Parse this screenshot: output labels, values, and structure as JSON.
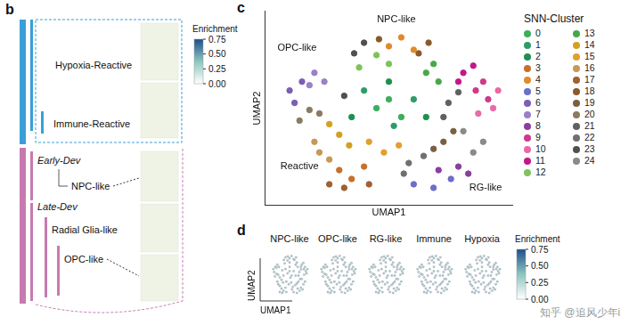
{
  "panel_b": {
    "label": "b",
    "reactive_group": [
      "Hypoxia-Reactive",
      "Immune-Reactive"
    ],
    "early_dev": {
      "title": "Early-Dev",
      "members": [
        "NPC-like"
      ]
    },
    "late_dev": {
      "title": "Late-Dev",
      "members": [
        "Radial Glia-like",
        "OPC-like"
      ]
    },
    "colorbar": {
      "title": "Enrichment",
      "range": [
        0,
        0.75
      ],
      "ticks": [
        {
          "value": 0,
          "label": "0.00"
        },
        0.25,
        {
          "value": 0.5,
          "label": "0.50"
        },
        0.75
      ]
    }
  },
  "chart_data": {
    "type": "scatter",
    "label": "c",
    "x_label": "UMAP1",
    "y_label": "UMAP2",
    "legend_title": "SNN-Cluster",
    "legend": "right",
    "tick_labels": false,
    "grid": false,
    "xlim": [
      0,
      10
    ],
    "ylim": [
      0,
      11
    ],
    "annotations": [
      {
        "text": "NPC-like",
        "x": 5.3,
        "y": 10.5
      },
      {
        "text": "OPC-like",
        "x": 1.3,
        "y": 8.9
      },
      {
        "text": "Reactive",
        "x": 1.4,
        "y": 2.2
      },
      {
        "text": "RG-like",
        "x": 8.9,
        "y": 1.0
      }
    ],
    "series": [
      {
        "name": "0",
        "color": "#3cae5c",
        "values": [
          [
            4.5,
            5.5
          ],
          [
            5,
            6
          ],
          [
            5.5,
            5
          ]
        ]
      },
      {
        "name": "1",
        "color": "#2e9c6a",
        "values": [
          [
            4,
            6.5
          ],
          [
            6,
            6
          ],
          [
            5.2,
            4.5
          ]
        ]
      },
      {
        "name": "2",
        "color": "#1e8f50",
        "values": [
          [
            6.5,
            5
          ],
          [
            3.5,
            5
          ],
          [
            5,
            7
          ]
        ]
      },
      {
        "name": "3",
        "color": "#c8702a",
        "values": [
          [
            3,
            2
          ],
          [
            3.5,
            1.5
          ],
          [
            4,
            2.2
          ]
        ]
      },
      {
        "name": "4",
        "color": "#e08a2c",
        "values": [
          [
            5,
            9
          ],
          [
            5.5,
            9.5
          ],
          [
            6,
            8.8
          ]
        ]
      },
      {
        "name": "5",
        "color": "#6a6fc8",
        "values": [
          [
            6,
            1.2
          ],
          [
            6.8,
            1
          ],
          [
            7.5,
            1.5
          ]
        ]
      },
      {
        "name": "6",
        "color": "#7a5fb5",
        "values": [
          [
            1,
            6.5
          ],
          [
            1.5,
            7
          ],
          [
            1.2,
            5.8
          ]
        ]
      },
      {
        "name": "7",
        "color": "#9a80c8",
        "values": [
          [
            2,
            7.5
          ],
          [
            1.8,
            6.8
          ],
          [
            2.4,
            7
          ]
        ]
      },
      {
        "name": "8",
        "color": "#8a3fa0",
        "values": [
          [
            7,
            2
          ],
          [
            7.8,
            2.2
          ],
          [
            8.2,
            1.8
          ]
        ]
      },
      {
        "name": "9",
        "color": "#d03a8a",
        "values": [
          [
            8.5,
            6.5
          ],
          [
            9,
            6
          ],
          [
            8.8,
            7
          ]
        ]
      },
      {
        "name": "10",
        "color": "#e86aa8",
        "values": [
          [
            9.2,
            5.5
          ],
          [
            8.6,
            5.2
          ],
          [
            9.4,
            6.5
          ]
        ]
      },
      {
        "name": "11",
        "color": "#c2188b",
        "values": [
          [
            8,
            7.5
          ],
          [
            8.4,
            7.9
          ],
          [
            7.8,
            7
          ]
        ]
      },
      {
        "name": "12",
        "color": "#7cc45a",
        "values": [
          [
            4.5,
            8.5
          ],
          [
            5,
            8
          ],
          [
            3.8,
            7.8
          ]
        ]
      },
      {
        "name": "13",
        "color": "#48a848",
        "values": [
          [
            6.5,
            7.5
          ],
          [
            7,
            7
          ],
          [
            6.8,
            8
          ]
        ]
      },
      {
        "name": "14",
        "color": "#d4a020",
        "values": [
          [
            3,
            4
          ],
          [
            2.6,
            4.6
          ],
          [
            3.4,
            3.4
          ]
        ]
      },
      {
        "name": "15",
        "color": "#e0a030",
        "values": [
          [
            4.8,
            3
          ],
          [
            5.4,
            3.4
          ],
          [
            4.2,
            3.6
          ]
        ]
      },
      {
        "name": "16",
        "color": "#c89858",
        "values": [
          [
            2.2,
            3
          ],
          [
            2.6,
            2.6
          ],
          [
            2,
            3.6
          ]
        ]
      },
      {
        "name": "17",
        "color": "#a06030",
        "values": [
          [
            3.2,
            1
          ],
          [
            2.6,
            1.2
          ],
          [
            4.2,
            1.2
          ]
        ]
      },
      {
        "name": "18",
        "color": "#8a5a2a",
        "values": [
          [
            6.2,
            8.6
          ],
          [
            6.6,
            9.2
          ],
          [
            4.6,
            9.4
          ]
        ]
      },
      {
        "name": "19",
        "color": "#7a6040",
        "values": [
          [
            7.2,
            3.6
          ],
          [
            7.6,
            4.2
          ],
          [
            6.8,
            3.2
          ]
        ]
      },
      {
        "name": "20",
        "color": "#8a7a60",
        "values": [
          [
            1.4,
            4.8
          ],
          [
            1.8,
            5.4
          ],
          [
            2.2,
            5.2
          ]
        ]
      },
      {
        "name": "21",
        "color": "#606060",
        "values": [
          [
            7.4,
            5.8
          ],
          [
            7.8,
            6.4
          ],
          [
            7.2,
            5
          ]
        ]
      },
      {
        "name": "22",
        "color": "#707070",
        "values": [
          [
            5.8,
            2.4
          ],
          [
            6.4,
            2.8
          ],
          [
            5.6,
            1.8
          ]
        ]
      },
      {
        "name": "23",
        "color": "#505050",
        "values": [
          [
            3.6,
            8.6
          ],
          [
            4,
            9.2
          ],
          [
            3.2,
            6.2
          ]
        ]
      },
      {
        "name": "24",
        "color": "#8a8a8a",
        "values": [
          [
            8.4,
            3
          ],
          [
            8.8,
            3.6
          ],
          [
            8,
            4.2
          ]
        ]
      }
    ]
  },
  "panel_d": {
    "label": "d",
    "titles": [
      "NPC-like",
      "OPC-like",
      "RG-like",
      "Immune",
      "Hypoxia"
    ],
    "x_label": "UMAP1",
    "y_label": "UMAP2",
    "colorbar": {
      "title": "Enrichment",
      "range": [
        0,
        0.75
      ],
      "ticks": [
        {
          "value": 0,
          "label": "0.00"
        },
        0.25,
        {
          "value": 0.5,
          "label": "0.50"
        },
        0.75
      ]
    }
  },
  "watermark": "知乎 @追风少年i"
}
